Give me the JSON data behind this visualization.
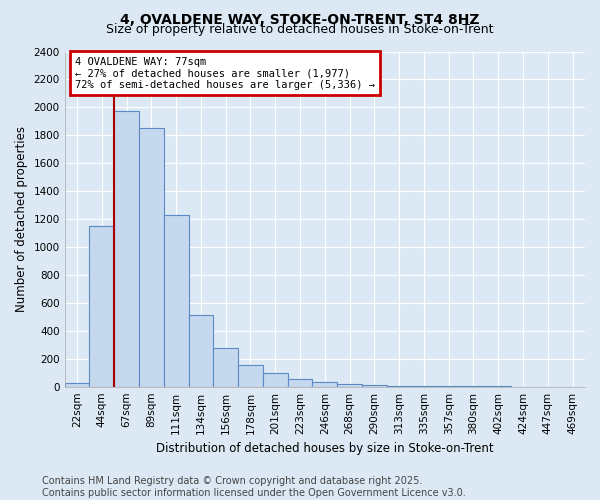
{
  "title": "4, OVALDENE WAY, STOKE-ON-TRENT, ST4 8HZ",
  "subtitle": "Size of property relative to detached houses in Stoke-on-Trent",
  "xlabel": "Distribution of detached houses by size in Stoke-on-Trent",
  "ylabel": "Number of detached properties",
  "footer_line1": "Contains HM Land Registry data © Crown copyright and database right 2025.",
  "footer_line2": "Contains public sector information licensed under the Open Government Licence v3.0.",
  "bin_labels": [
    "22sqm",
    "44sqm",
    "67sqm",
    "89sqm",
    "111sqm",
    "134sqm",
    "156sqm",
    "178sqm",
    "201sqm",
    "223sqm",
    "246sqm",
    "268sqm",
    "290sqm",
    "313sqm",
    "335sqm",
    "357sqm",
    "380sqm",
    "402sqm",
    "424sqm",
    "447sqm",
    "469sqm"
  ],
  "bin_edges": [
    0,
    1,
    2,
    3,
    4,
    5,
    6,
    7,
    8,
    9,
    10,
    11,
    12,
    13,
    14,
    15,
    16,
    17,
    18,
    19,
    20,
    21
  ],
  "values": [
    25,
    1150,
    1975,
    1850,
    1230,
    510,
    275,
    155,
    100,
    55,
    35,
    20,
    10,
    7,
    5,
    3,
    2,
    2,
    1,
    1,
    1
  ],
  "bar_color": "#c5d8ee",
  "bar_edge_color": "#5b8ac5",
  "highlight_bin": 2,
  "highlight_color": "#aa0000",
  "annotation_line1": "4 OVALDENE WAY: 77sqm",
  "annotation_line2": "← 27% of detached houses are smaller (1,977)",
  "annotation_line3": "72% of semi-detached houses are larger (5,336) →",
  "annotation_box_edge": "#cc0000",
  "ylim": [
    0,
    2400
  ],
  "yticks": [
    0,
    200,
    400,
    600,
    800,
    1000,
    1200,
    1400,
    1600,
    1800,
    2000,
    2200,
    2400
  ],
  "bg_color": "#dce9f5",
  "plot_bg_color": "#dce9f5",
  "grid_color": "#ffffff",
  "title_fontsize": 10,
  "subtitle_fontsize": 9,
  "axis_label_fontsize": 8.5,
  "tick_fontsize": 7.5,
  "footer_fontsize": 7
}
